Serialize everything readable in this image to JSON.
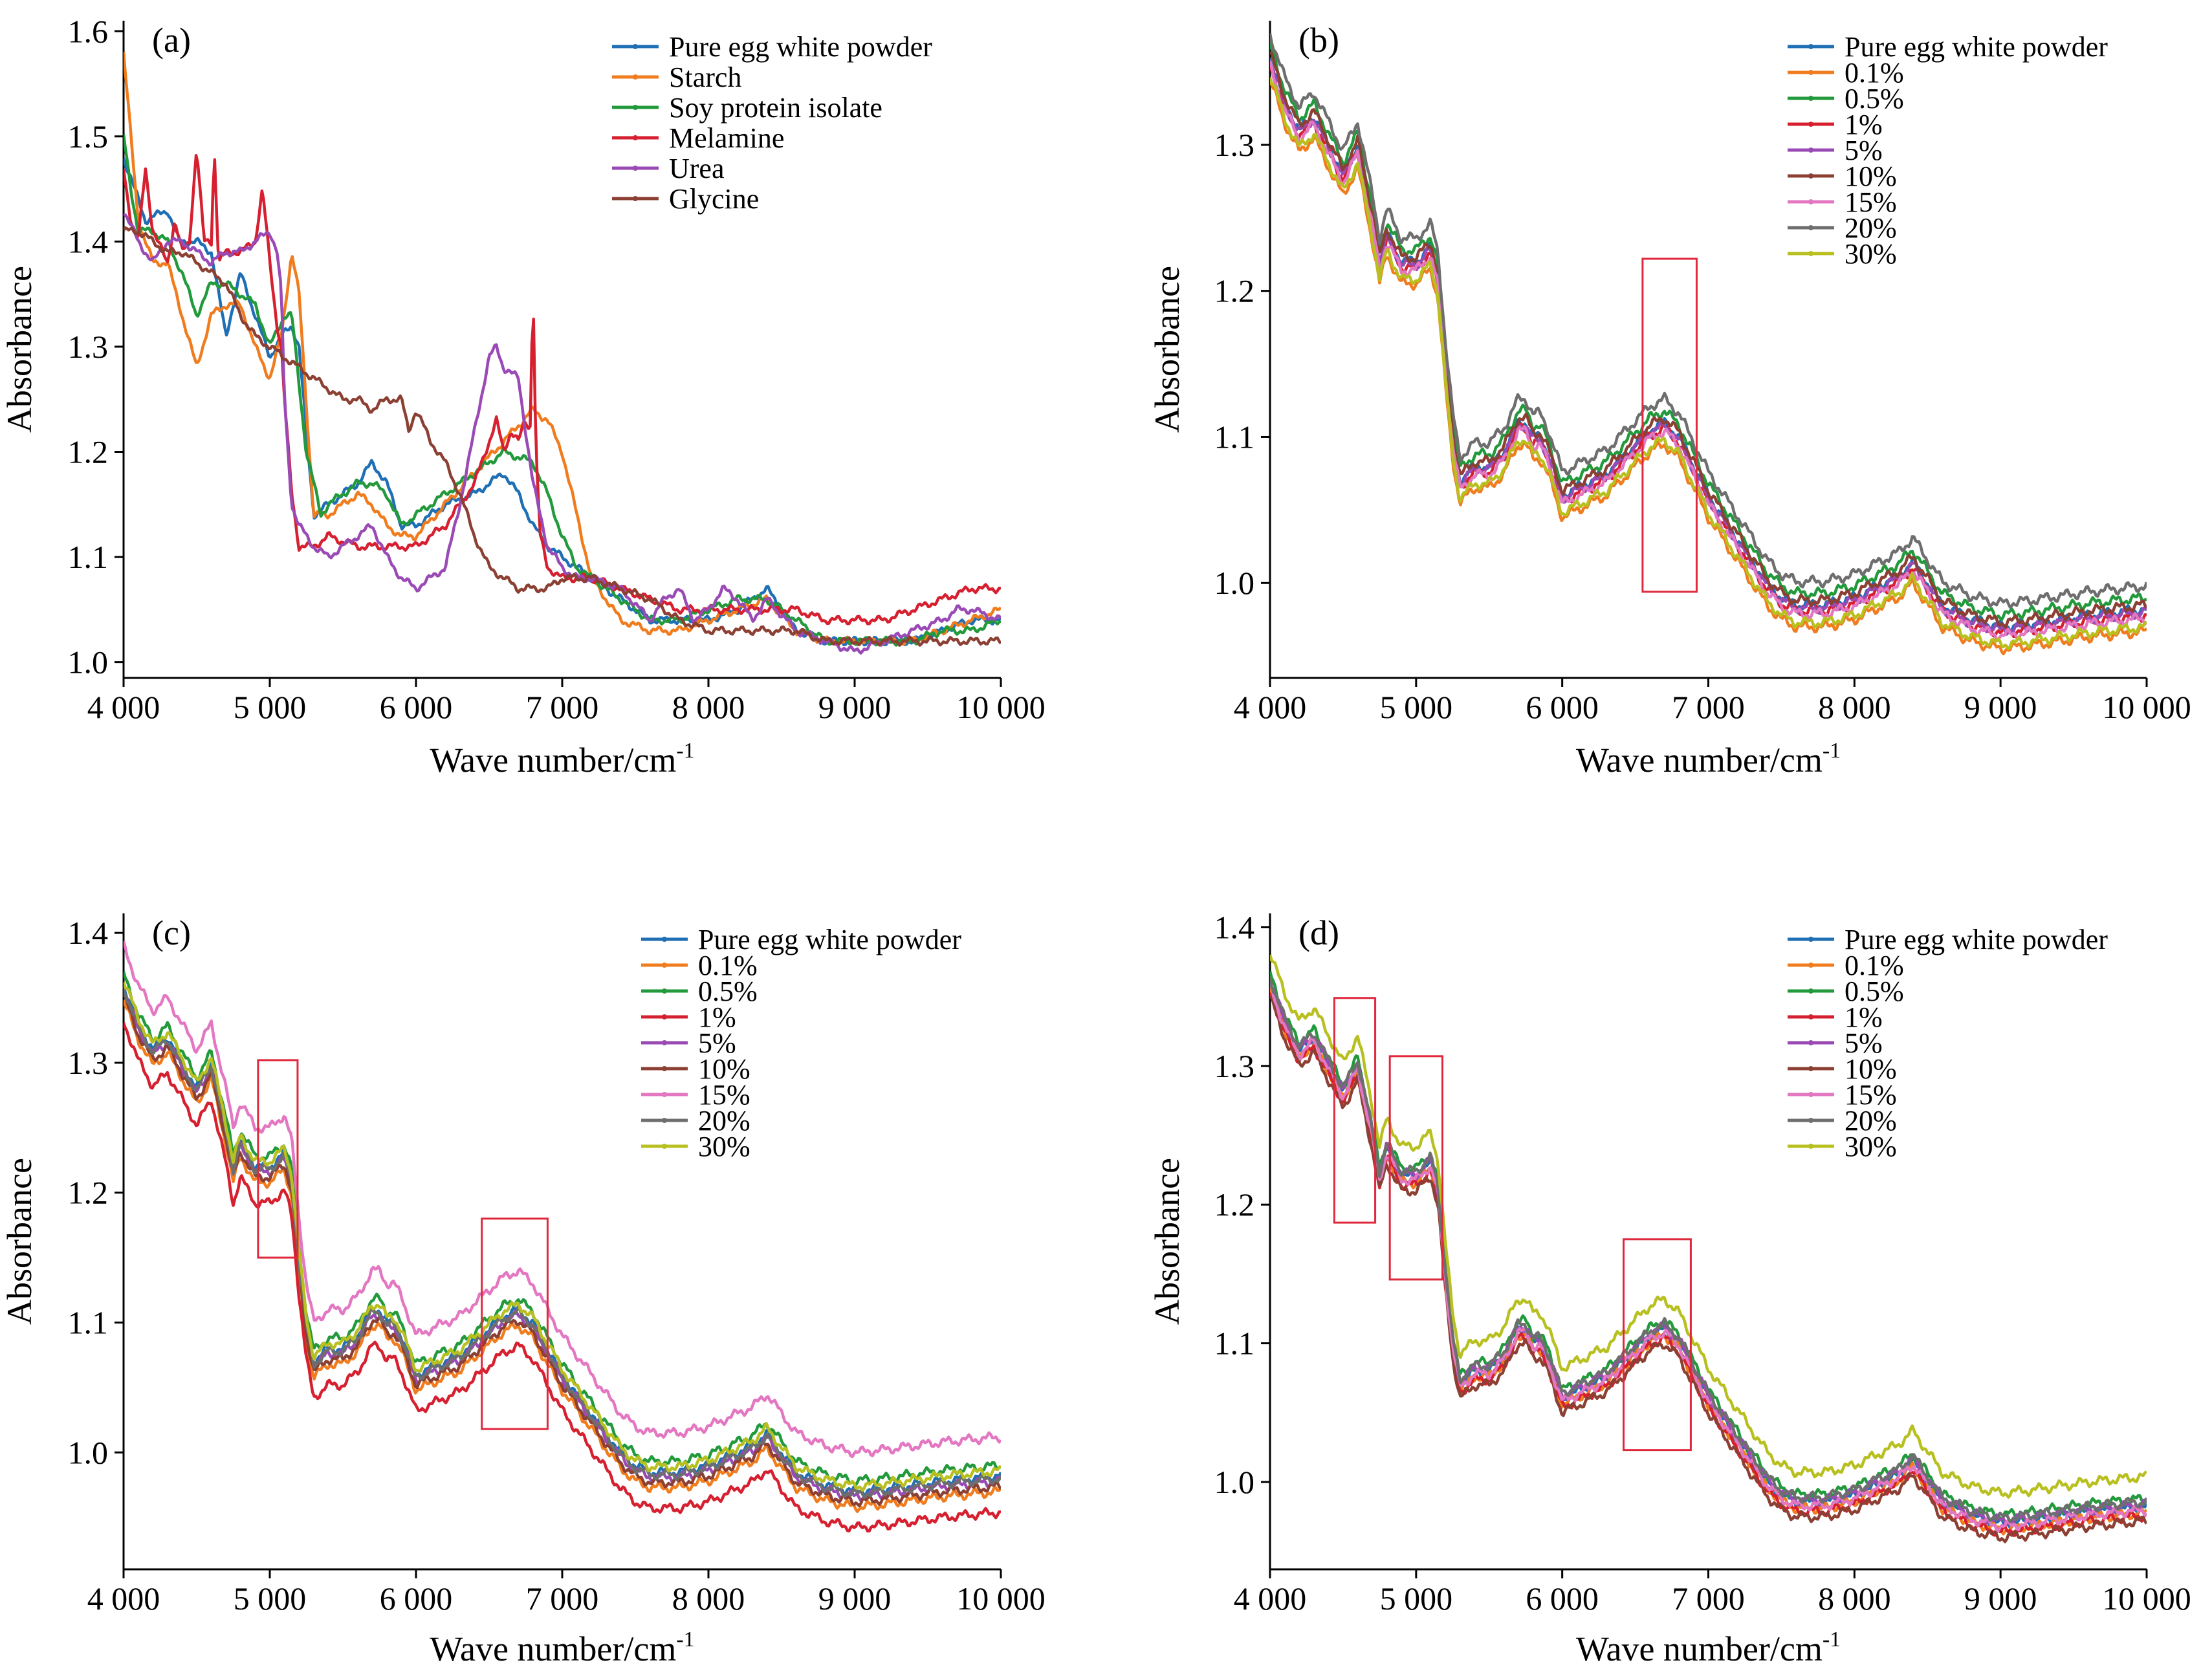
{
  "chart_data": [
    {
      "type": "line",
      "panel_label": "(a)",
      "xlabel": "Wave number/cm",
      "xlabel_sup": "-1",
      "ylabel": "Absorbance",
      "xlim": [
        4000,
        10000
      ],
      "ylim": [
        0.985,
        1.61
      ],
      "x_ticks": [
        4000,
        5000,
        6000,
        7000,
        8000,
        9000,
        10000
      ],
      "x_tick_labels": [
        "4 000",
        "5 000",
        "6 000",
        "7 000",
        "8 000",
        "9 000",
        "10 000"
      ],
      "y_ticks": [
        1.0,
        1.1,
        1.2,
        1.3,
        1.4,
        1.5,
        1.6
      ],
      "y_tick_labels": [
        "1.0",
        "1.1",
        "1.2",
        "1.3",
        "1.4",
        "1.5",
        "1.6"
      ],
      "legend_position": "top-right",
      "highlight_boxes": [],
      "series": [
        {
          "name": "Pure egg white powder",
          "color": "#1f6fb4",
          "x": [
            4000,
            4150,
            4300,
            4380,
            4500,
            4600,
            4700,
            4800,
            4900,
            5000,
            5080,
            5150,
            5200,
            5300,
            5400,
            5500,
            5600,
            5700,
            5800,
            5900,
            6000,
            6200,
            6400,
            6600,
            6700,
            6800,
            6900,
            7000,
            7100,
            7200,
            7400,
            7600,
            7800,
            8000,
            8200,
            8400,
            8500,
            8600,
            8800,
            9000,
            9200,
            9400,
            9600,
            9800,
            10000
          ],
          "y": [
            1.48,
            1.42,
            1.43,
            1.4,
            1.4,
            1.39,
            1.31,
            1.37,
            1.33,
            1.29,
            1.31,
            1.32,
            1.3,
            1.14,
            1.15,
            1.16,
            1.17,
            1.19,
            1.17,
            1.13,
            1.13,
            1.15,
            1.16,
            1.18,
            1.16,
            1.13,
            1.11,
            1.1,
            1.09,
            1.08,
            1.06,
            1.04,
            1.04,
            1.04,
            1.05,
            1.07,
            1.05,
            1.03,
            1.02,
            1.02,
            1.02,
            1.02,
            1.03,
            1.04,
            1.04
          ]
        },
        {
          "name": "Starch",
          "color": "#f07c1e",
          "x": [
            4000,
            4050,
            4100,
            4200,
            4300,
            4400,
            4500,
            4600,
            4700,
            4800,
            4900,
            5000,
            5080,
            5150,
            5200,
            5300,
            5400,
            5500,
            5600,
            5700,
            5800,
            5900,
            6000,
            6200,
            6400,
            6600,
            6800,
            6900,
            7000,
            7100,
            7200,
            7400,
            7600,
            7800,
            8000,
            8200,
            8400,
            8600,
            8800,
            9000,
            9200,
            9400,
            9600,
            9800,
            10000
          ],
          "y": [
            1.58,
            1.5,
            1.42,
            1.38,
            1.38,
            1.33,
            1.28,
            1.33,
            1.34,
            1.34,
            1.3,
            1.27,
            1.31,
            1.39,
            1.35,
            1.14,
            1.14,
            1.15,
            1.16,
            1.15,
            1.13,
            1.12,
            1.12,
            1.15,
            1.18,
            1.21,
            1.24,
            1.23,
            1.2,
            1.14,
            1.08,
            1.04,
            1.03,
            1.03,
            1.04,
            1.05,
            1.06,
            1.03,
            1.02,
            1.02,
            1.02,
            1.02,
            1.03,
            1.04,
            1.05
          ]
        },
        {
          "name": "Soy protein isolate",
          "color": "#229a3c",
          "x": [
            4000,
            4050,
            4100,
            4200,
            4300,
            4400,
            4500,
            4600,
            4700,
            4800,
            4900,
            5000,
            5100,
            5150,
            5250,
            5350,
            5400,
            5500,
            5600,
            5700,
            5800,
            5900,
            6000,
            6200,
            6400,
            6600,
            6800,
            6900,
            7000,
            7100,
            7200,
            7400,
            7600,
            7800,
            8000,
            8200,
            8400,
            8600,
            8800,
            9000,
            9200,
            9400,
            9600,
            9800,
            10000
          ],
          "y": [
            1.5,
            1.45,
            1.41,
            1.41,
            1.4,
            1.37,
            1.33,
            1.36,
            1.36,
            1.35,
            1.34,
            1.3,
            1.33,
            1.33,
            1.2,
            1.14,
            1.15,
            1.16,
            1.17,
            1.17,
            1.16,
            1.13,
            1.14,
            1.16,
            1.18,
            1.2,
            1.19,
            1.16,
            1.12,
            1.09,
            1.08,
            1.06,
            1.04,
            1.04,
            1.05,
            1.06,
            1.06,
            1.04,
            1.02,
            1.02,
            1.02,
            1.02,
            1.03,
            1.03,
            1.04
          ]
        },
        {
          "name": "Melamine",
          "color": "#d62030",
          "x": [
            4000,
            4050,
            4100,
            4150,
            4200,
            4300,
            4350,
            4400,
            4450,
            4500,
            4550,
            4600,
            4620,
            4650,
            4700,
            4800,
            4900,
            4950,
            5000,
            5050,
            5080,
            5100,
            5150,
            5200,
            5300,
            5400,
            5600,
            5800,
            6000,
            6200,
            6400,
            6500,
            6550,
            6600,
            6650,
            6700,
            6750,
            6780,
            6800,
            6820,
            6850,
            6900,
            7000,
            7100,
            7200,
            7400,
            7600,
            7800,
            8000,
            8200,
            8400,
            8600,
            8800,
            9000,
            9200,
            9400,
            9600,
            9800,
            10000
          ],
          "y": [
            1.47,
            1.42,
            1.4,
            1.47,
            1.41,
            1.38,
            1.42,
            1.39,
            1.4,
            1.49,
            1.4,
            1.4,
            1.49,
            1.38,
            1.39,
            1.39,
            1.4,
            1.45,
            1.38,
            1.32,
            1.3,
            1.25,
            1.16,
            1.11,
            1.11,
            1.12,
            1.11,
            1.11,
            1.11,
            1.13,
            1.17,
            1.21,
            1.23,
            1.2,
            1.22,
            1.21,
            1.23,
            1.22,
            1.36,
            1.2,
            1.12,
            1.09,
            1.08,
            1.08,
            1.08,
            1.07,
            1.06,
            1.05,
            1.05,
            1.05,
            1.05,
            1.05,
            1.04,
            1.04,
            1.04,
            1.05,
            1.06,
            1.07,
            1.07
          ]
        },
        {
          "name": "Urea",
          "color": "#9a4ab5",
          "x": [
            4000,
            4100,
            4200,
            4300,
            4400,
            4500,
            4600,
            4700,
            4800,
            4900,
            5000,
            5050,
            5080,
            5100,
            5150,
            5200,
            5300,
            5400,
            5500,
            5600,
            5700,
            5800,
            5900,
            6000,
            6100,
            6200,
            6300,
            6400,
            6500,
            6550,
            6600,
            6700,
            6800,
            6900,
            7000,
            7100,
            7200,
            7400,
            7600,
            7700,
            7800,
            7900,
            8000,
            8100,
            8200,
            8300,
            8400,
            8600,
            8800,
            9000,
            9200,
            9400,
            9600,
            9700,
            9800,
            10000
          ],
          "y": [
            1.43,
            1.4,
            1.38,
            1.4,
            1.4,
            1.39,
            1.38,
            1.39,
            1.39,
            1.4,
            1.41,
            1.39,
            1.35,
            1.25,
            1.15,
            1.13,
            1.11,
            1.1,
            1.11,
            1.12,
            1.13,
            1.1,
            1.08,
            1.07,
            1.08,
            1.09,
            1.15,
            1.22,
            1.29,
            1.3,
            1.28,
            1.27,
            1.17,
            1.11,
            1.09,
            1.08,
            1.08,
            1.07,
            1.04,
            1.06,
            1.07,
            1.04,
            1.05,
            1.07,
            1.06,
            1.04,
            1.06,
            1.03,
            1.02,
            1.01,
            1.02,
            1.03,
            1.04,
            1.05,
            1.05,
            1.04
          ]
        },
        {
          "name": "Glycine",
          "color": "#8b4033",
          "x": [
            4000,
            4100,
            4200,
            4300,
            4400,
            4500,
            4600,
            4700,
            4800,
            4900,
            5000,
            5100,
            5200,
            5300,
            5400,
            5500,
            5600,
            5700,
            5800,
            5900,
            5950,
            6000,
            6100,
            6200,
            6300,
            6400,
            6500,
            6600,
            6700,
            6800,
            6900,
            7000,
            7100,
            7200,
            7400,
            7600,
            7800,
            8000,
            8200,
            8400,
            8600,
            8800,
            9000,
            9200,
            9400,
            9600,
            9800,
            10000
          ],
          "y": [
            1.41,
            1.41,
            1.4,
            1.39,
            1.39,
            1.38,
            1.37,
            1.36,
            1.33,
            1.31,
            1.3,
            1.29,
            1.28,
            1.27,
            1.26,
            1.25,
            1.25,
            1.24,
            1.25,
            1.25,
            1.22,
            1.24,
            1.21,
            1.19,
            1.16,
            1.12,
            1.09,
            1.08,
            1.07,
            1.07,
            1.07,
            1.08,
            1.08,
            1.08,
            1.07,
            1.06,
            1.04,
            1.03,
            1.03,
            1.03,
            1.03,
            1.02,
            1.02,
            1.02,
            1.02,
            1.02,
            1.02,
            1.02
          ]
        }
      ]
    },
    {
      "type": "line",
      "panel_label": "(b)",
      "xlabel": "Wave number/cm",
      "xlabel_sup": "-1",
      "ylabel": "Absorbance",
      "xlim": [
        4000,
        10000
      ],
      "ylim": [
        0.935,
        1.385
      ],
      "x_ticks": [
        4000,
        5000,
        6000,
        7000,
        8000,
        9000,
        10000
      ],
      "x_tick_labels": [
        "4 000",
        "5 000",
        "6 000",
        "7 000",
        "8 000",
        "9 000",
        "10 000"
      ],
      "y_ticks": [
        1.0,
        1.1,
        1.2,
        1.3
      ],
      "y_tick_labels": [
        "1.0",
        "1.1",
        "1.2",
        "1.3"
      ],
      "legend_position": "top-right",
      "highlight_boxes": [
        {
          "x0": 6550,
          "x1": 6920,
          "y0": 0.994,
          "y1": 1.222
        }
      ],
      "series": [
        {
          "name": "Pure egg white powder",
          "color": "#1f6fb4",
          "offset": 0.0
        },
        {
          "name": "0.1%",
          "color": "#f07c1e",
          "offset": -0.015
        },
        {
          "name": "0.5%",
          "color": "#229a3c",
          "offset": 0.008
        },
        {
          "name": "1%",
          "color": "#d62030",
          "offset": -0.004
        },
        {
          "name": "5%",
          "color": "#9a4ab5",
          "offset": -0.002
        },
        {
          "name": "10%",
          "color": "#8b4033",
          "offset": 0.003
        },
        {
          "name": "15%",
          "color": "#e377c2",
          "offset": -0.006
        },
        {
          "name": "20%",
          "color": "#6e6e6e",
          "offset": 0.016
        },
        {
          "name": "30%",
          "color": "#b8c020",
          "offset": -0.012
        }
      ]
    },
    {
      "type": "line",
      "panel_label": "(c)",
      "xlabel": "Wave number/cm",
      "xlabel_sup": "-1",
      "ylabel": "Absorbance",
      "xlim": [
        4000,
        10000
      ],
      "ylim": [
        0.91,
        1.415
      ],
      "x_ticks": [
        4000,
        5000,
        6000,
        7000,
        8000,
        9000,
        10000
      ],
      "x_tick_labels": [
        "4 000",
        "5 000",
        "6 000",
        "7 000",
        "8 000",
        "9 000",
        "10 000"
      ],
      "y_ticks": [
        1.0,
        1.1,
        1.2,
        1.3,
        1.4
      ],
      "y_tick_labels": [
        "1.0",
        "1.1",
        "1.2",
        "1.3",
        "1.4"
      ],
      "legend_position": "top-right",
      "highlight_boxes": [
        {
          "x0": 4920,
          "x1": 5190,
          "y0": 1.15,
          "y1": 1.302
        },
        {
          "x0": 6450,
          "x1": 6900,
          "y0": 1.018,
          "y1": 1.18
        }
      ],
      "series": [
        {
          "name": "Pure egg white powder",
          "color": "#1f6fb4",
          "offset": 0.0
        },
        {
          "name": "0.1%",
          "color": "#f07c1e",
          "offset": -0.012
        },
        {
          "name": "0.5%",
          "color": "#229a3c",
          "offset": 0.008
        },
        {
          "name": "1%",
          "color": "#d62030",
          "offset": -0.028
        },
        {
          "name": "5%",
          "color": "#9a4ab5",
          "offset": -0.004
        },
        {
          "name": "10%",
          "color": "#8b4033",
          "offset": -0.008
        },
        {
          "name": "15%",
          "color": "#e377c2",
          "offset": 0.03
        },
        {
          "name": "20%",
          "color": "#6e6e6e",
          "offset": -0.002
        },
        {
          "name": "30%",
          "color": "#b8c020",
          "offset": 0.004
        }
      ]
    },
    {
      "type": "line",
      "panel_label": "(d)",
      "xlabel": "Wave number/cm",
      "xlabel_sup": "-1",
      "ylabel": "Absorbance",
      "xlim": [
        4000,
        10000
      ],
      "ylim": [
        0.937,
        1.41
      ],
      "x_ticks": [
        4000,
        5000,
        6000,
        7000,
        8000,
        9000,
        10000
      ],
      "x_tick_labels": [
        "4 000",
        "5 000",
        "6 000",
        "7 000",
        "8 000",
        "9 000",
        "10 000"
      ],
      "y_ticks": [
        1.0,
        1.1,
        1.2,
        1.3,
        1.4
      ],
      "y_tick_labels": [
        "1.0",
        "1.1",
        "1.2",
        "1.3",
        "1.4"
      ],
      "legend_position": "top-right",
      "highlight_boxes": [
        {
          "x0": 4440,
          "x1": 4720,
          "y0": 1.187,
          "y1": 1.349
        },
        {
          "x0": 4820,
          "x1": 5180,
          "y0": 1.146,
          "y1": 1.307
        },
        {
          "x0": 6420,
          "x1": 6880,
          "y0": 1.023,
          "y1": 1.175
        }
      ],
      "series": [
        {
          "name": "Pure egg white powder",
          "color": "#1f6fb4",
          "offset": 0.0
        },
        {
          "name": "0.1%",
          "color": "#f07c1e",
          "offset": -0.004
        },
        {
          "name": "0.5%",
          "color": "#229a3c",
          "offset": 0.006
        },
        {
          "name": "1%",
          "color": "#d62030",
          "offset": -0.006
        },
        {
          "name": "5%",
          "color": "#9a4ab5",
          "offset": 0.002
        },
        {
          "name": "10%",
          "color": "#8b4033",
          "offset": -0.01
        },
        {
          "name": "15%",
          "color": "#e377c2",
          "offset": -0.002
        },
        {
          "name": "20%",
          "color": "#6e6e6e",
          "offset": 0.004
        },
        {
          "name": "30%",
          "color": "#b8c020",
          "offset": 0.022
        }
      ]
    }
  ]
}
